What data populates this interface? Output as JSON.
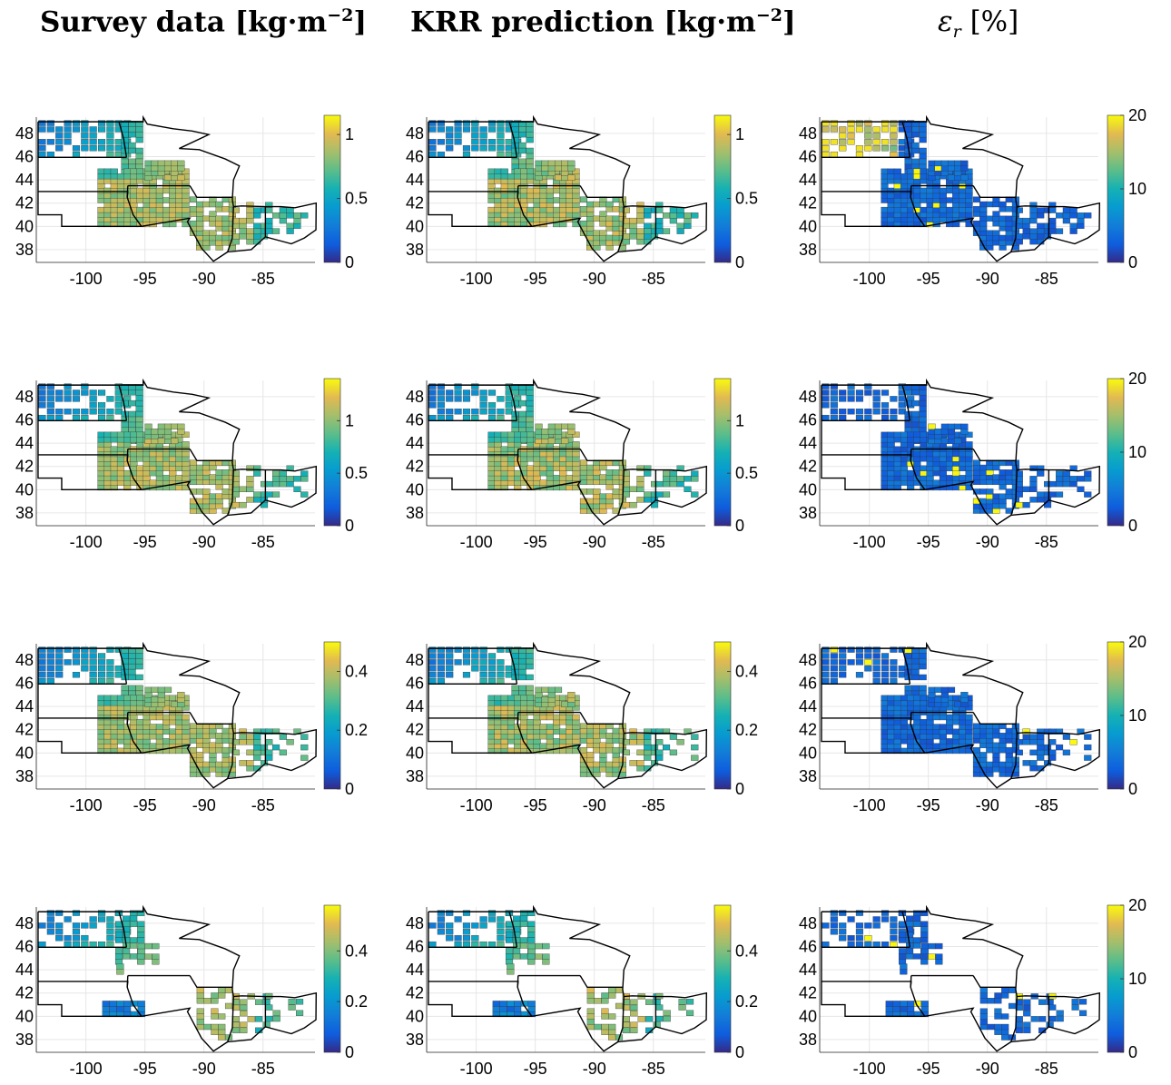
{
  "columns": [
    {
      "title": "Survey data [kg·m",
      "exponent": "−2",
      "suffix": "]"
    },
    {
      "title": "KRR prediction [kg·m",
      "exponent": "−2",
      "suffix": "]"
    },
    {
      "title": "ε",
      "subscript": "r",
      "suffix": " [%]"
    }
  ],
  "map_extent": {
    "lon": [
      -104.2,
      -80.6
    ],
    "lat": [
      36.9,
      49.4
    ]
  },
  "x_ticks": [
    -100,
    -95,
    -90,
    -85
  ],
  "y_ticks": [
    38,
    40,
    42,
    44,
    46,
    48
  ],
  "colormap": "parula",
  "chart_data": [
    {
      "type": "heatmap",
      "row": 1,
      "column": "Survey data",
      "colorbar": {
        "range": [
          0,
          1.15
        ],
        "ticks": [
          0,
          0.5,
          1
        ]
      }
    },
    {
      "type": "heatmap",
      "row": 1,
      "column": "KRR prediction",
      "colorbar": {
        "range": [
          0,
          1.15
        ],
        "ticks": [
          0,
          0.5,
          1
        ]
      }
    },
    {
      "type": "heatmap",
      "row": 1,
      "column": "Relative error",
      "colorbar": {
        "range": [
          0,
          20
        ],
        "ticks": [
          0,
          10,
          20
        ]
      }
    },
    {
      "type": "heatmap",
      "row": 2,
      "column": "Survey data",
      "colorbar": {
        "range": [
          0,
          1.4
        ],
        "ticks": [
          0,
          0.5,
          1
        ]
      }
    },
    {
      "type": "heatmap",
      "row": 2,
      "column": "KRR prediction",
      "colorbar": {
        "range": [
          0,
          1.4
        ],
        "ticks": [
          0,
          0.5,
          1
        ]
      }
    },
    {
      "type": "heatmap",
      "row": 2,
      "column": "Relative error",
      "colorbar": {
        "range": [
          0,
          20
        ],
        "ticks": [
          0,
          10,
          20
        ]
      }
    },
    {
      "type": "heatmap",
      "row": 3,
      "column": "Survey data",
      "colorbar": {
        "range": [
          0,
          0.5
        ],
        "ticks": [
          0,
          0.2,
          0.4
        ]
      }
    },
    {
      "type": "heatmap",
      "row": 3,
      "column": "KRR prediction",
      "colorbar": {
        "range": [
          0,
          0.5
        ],
        "ticks": [
          0,
          0.2,
          0.4
        ]
      }
    },
    {
      "type": "heatmap",
      "row": 3,
      "column": "Relative error",
      "colorbar": {
        "range": [
          0,
          20
        ],
        "ticks": [
          0,
          10,
          20
        ]
      }
    },
    {
      "type": "heatmap",
      "row": 4,
      "column": "Survey data",
      "colorbar": {
        "range": [
          0,
          0.58
        ],
        "ticks": [
          0,
          0.2,
          0.4
        ]
      }
    },
    {
      "type": "heatmap",
      "row": 4,
      "column": "KRR prediction",
      "colorbar": {
        "range": [
          0,
          0.58
        ],
        "ticks": [
          0,
          0.2,
          0.4
        ]
      }
    },
    {
      "type": "heatmap",
      "row": 4,
      "column": "Relative error",
      "colorbar": {
        "range": [
          0,
          20
        ],
        "ticks": [
          0,
          10,
          20
        ]
      }
    }
  ]
}
